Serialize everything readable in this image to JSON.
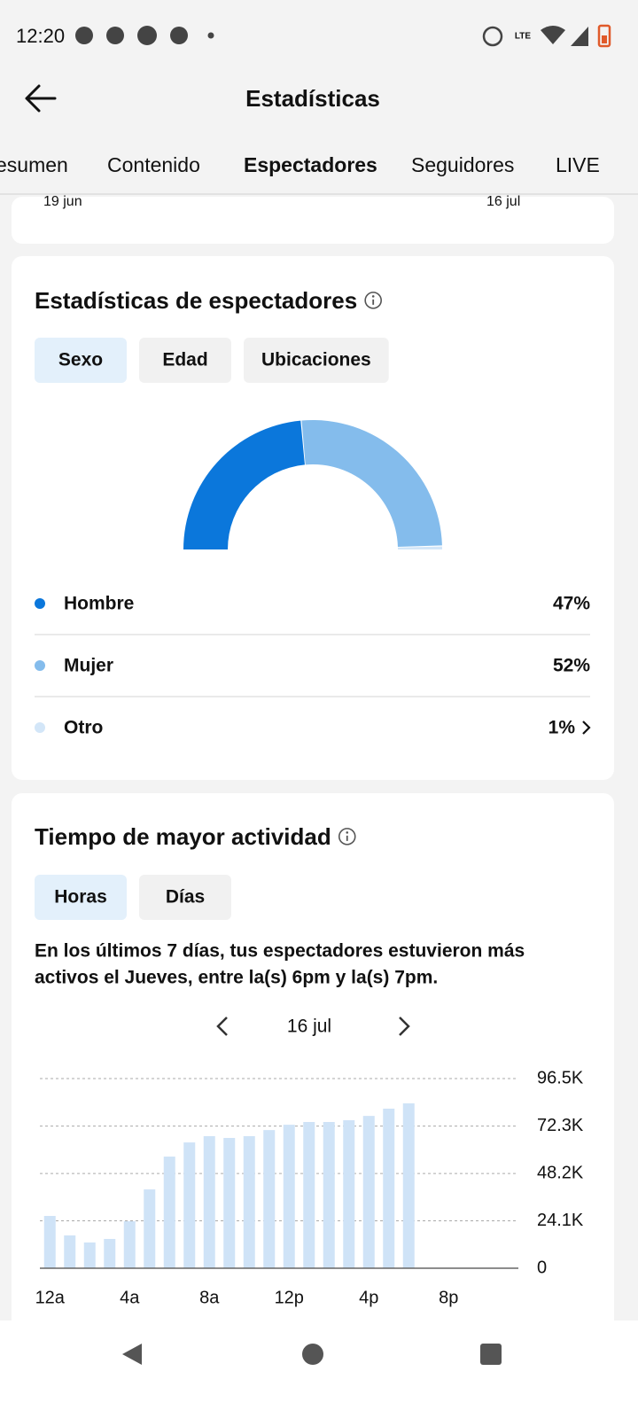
{
  "status_bar": {
    "time": "12:20",
    "network": "LTE"
  },
  "header": {
    "title": "Estadísticas"
  },
  "tabs": {
    "items": [
      "esumen",
      "Contenido",
      "Espectadores",
      "Seguidores",
      "LIVE"
    ],
    "active": 2
  },
  "previous_card": {
    "date_start": "19 jun",
    "date_end": "16 jul"
  },
  "viewers": {
    "title": "Estadísticas de espectadores",
    "filters": {
      "items": [
        "Sexo",
        "Edad",
        "Ubicaciones"
      ],
      "active": 0
    },
    "chart_data": {
      "type": "pie",
      "style": "half-donut",
      "categories": [
        "Hombre",
        "Mujer",
        "Otro"
      ],
      "values": [
        47,
        52,
        1
      ],
      "value_labels": [
        "47%",
        "52%",
        "1%"
      ],
      "colors": [
        "#0b77db",
        "#84bcec",
        "#d3e6f8"
      ]
    }
  },
  "activity": {
    "title": "Tiempo de mayor actividad",
    "filters": {
      "items": [
        "Horas",
        "Días"
      ],
      "active": 0
    },
    "summary_lines": [
      "En los últimos 7 días, tus espectadores estuvieron más",
      "activos el Jueves, entre la(s) 6pm y la(s) 7pm."
    ],
    "date": "16 jul",
    "chart_data": {
      "type": "bar",
      "categories": [
        "12a",
        null,
        null,
        null,
        "4a",
        null,
        null,
        null,
        "8a",
        null,
        null,
        null,
        "12p",
        null,
        null,
        null,
        "4p",
        null,
        null,
        null,
        "8p",
        null,
        null,
        null
      ],
      "values": [
        26600,
        16700,
        13100,
        14900,
        23900,
        40100,
        56800,
        64000,
        67200,
        66300,
        67200,
        70300,
        73000,
        74400,
        74400,
        75300,
        77500,
        81200,
        83900,
        null,
        null,
        null,
        null,
        null
      ],
      "color": "#cfe3f7",
      "ylim": [
        0,
        96500
      ],
      "yticks": [
        0,
        {
          "value": 24100,
          "label": "24.1K"
        },
        {
          "value": 48200,
          "label": "48.2K"
        },
        {
          "value": 72300,
          "label": "72.3K"
        },
        {
          "value": 96500,
          "label": "96.5K"
        }
      ],
      "grid": true,
      "y_axis_side": "right"
    }
  }
}
